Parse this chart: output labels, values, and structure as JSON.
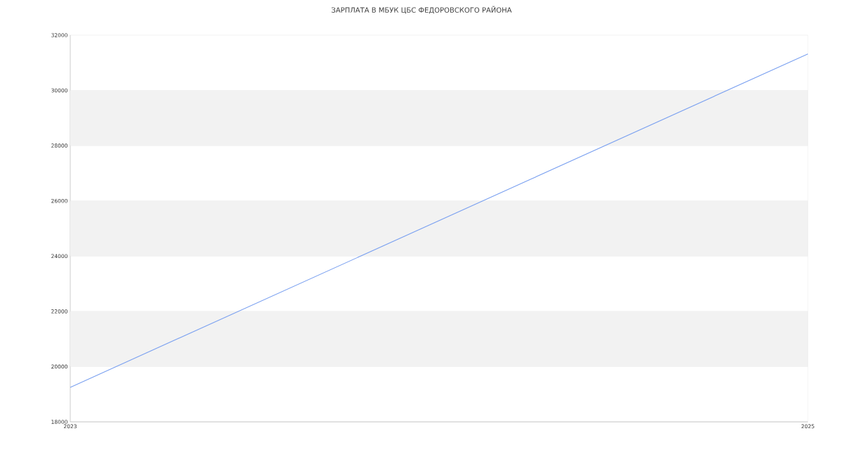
{
  "chart_data": {
    "type": "line",
    "title": "ЗАРПЛАТА В МБУК ЦБС ФЕДОРОВСКОГО РАЙОНА",
    "x": [
      "2023",
      "2025"
    ],
    "series": [
      {
        "color": "#7aa0f0",
        "values": [
          19250,
          31320
        ]
      }
    ],
    "xlim": [
      "2023",
      "2025"
    ],
    "xticks": [
      "2023",
      "2025"
    ],
    "ylim": [
      18000,
      32000
    ],
    "yticks": [
      18000,
      20000,
      22000,
      24000,
      26000,
      28000,
      30000,
      32000
    ],
    "grid": "y",
    "marker": "none",
    "line_style": "solid"
  }
}
